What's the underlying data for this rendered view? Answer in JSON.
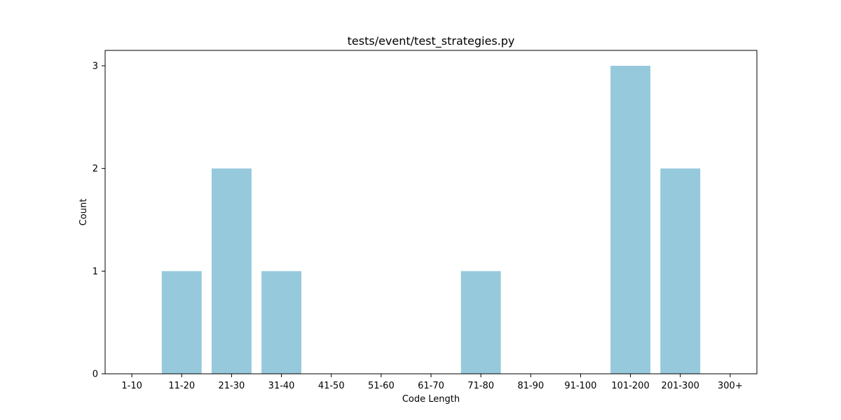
{
  "chart_data": {
    "type": "bar",
    "title": "tests/event/test_strategies.py",
    "xlabel": "Code Length",
    "ylabel": "Count",
    "categories": [
      "1-10",
      "11-20",
      "21-30",
      "31-40",
      "41-50",
      "51-60",
      "61-70",
      "71-80",
      "81-90",
      "91-100",
      "101-200",
      "201-300",
      "300+"
    ],
    "values": [
      0,
      1,
      2,
      1,
      0,
      0,
      0,
      1,
      0,
      0,
      3,
      2,
      0
    ],
    "ylim": [
      0,
      3.15
    ],
    "yticks": [
      0,
      1,
      2,
      3
    ],
    "bar_color": "#96c9dc",
    "grid": false,
    "legend": "none"
  }
}
